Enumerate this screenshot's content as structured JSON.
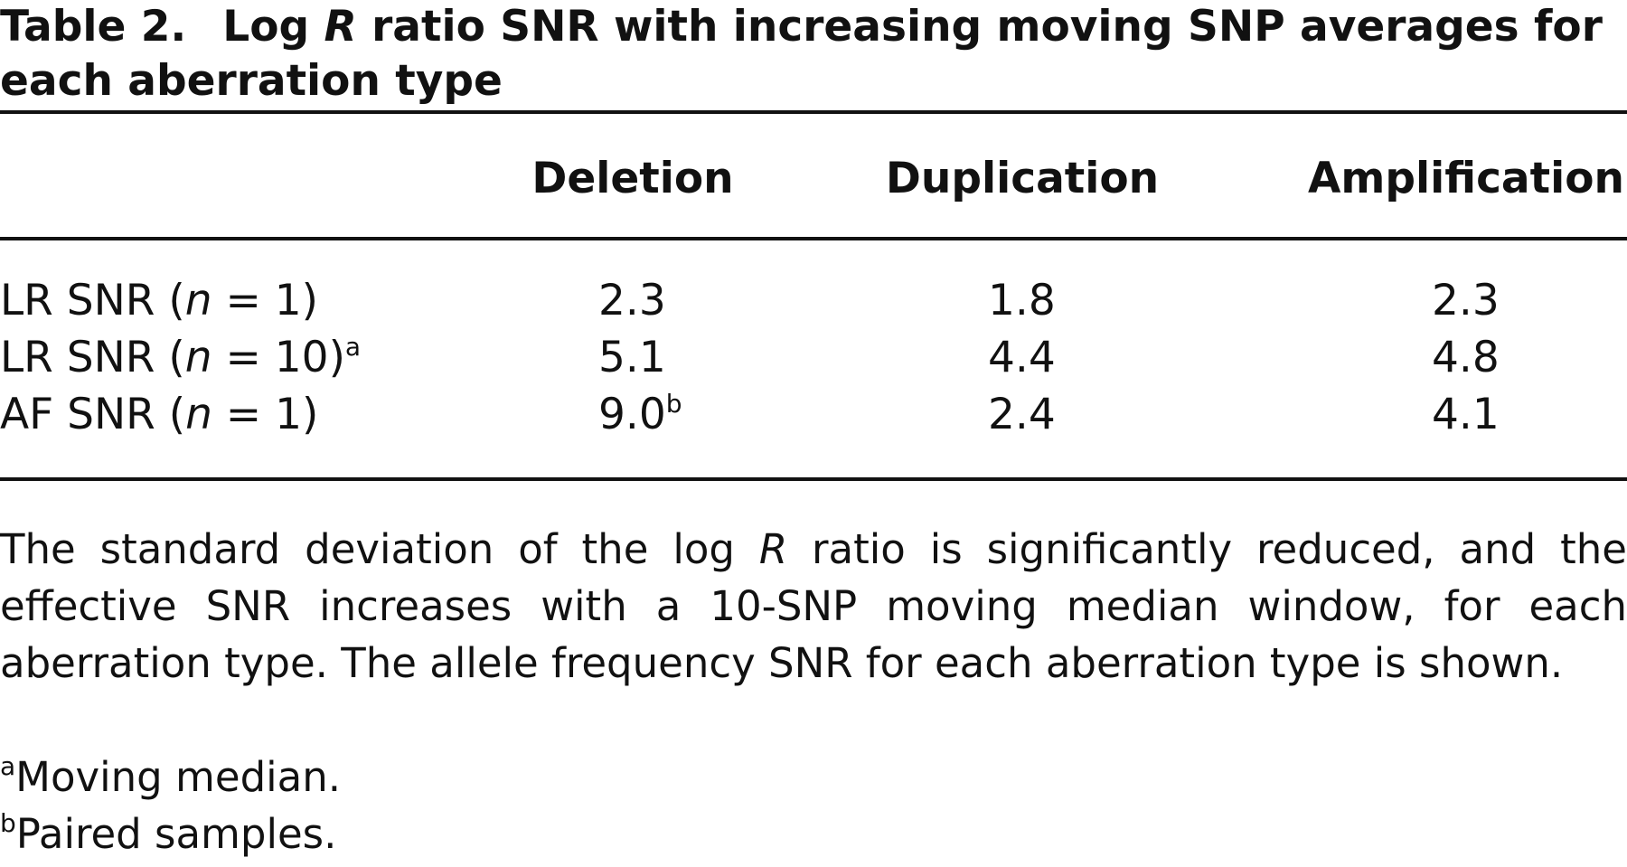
{
  "caption": {
    "label": "Table 2.",
    "parts": [
      "Log ",
      "R",
      " ratio SNR with increasing moving SNP averages for each aberration type"
    ]
  },
  "table": {
    "columns": [
      "Deletion",
      "Duplication",
      "Amplification"
    ],
    "rows": [
      {
        "label": [
          "LR SNR (",
          "n",
          " = 1)"
        ],
        "cells": [
          {
            "text": "2.3"
          },
          {
            "text": "1.8"
          },
          {
            "text": "2.3"
          }
        ]
      },
      {
        "label": [
          "LR SNR (",
          "n",
          " = 10)"
        ],
        "label_note": "a",
        "cells": [
          {
            "text": "5.1"
          },
          {
            "text": "4.4"
          },
          {
            "text": "4.8"
          }
        ]
      },
      {
        "label": [
          "AF SNR (",
          "n",
          " = 1)"
        ],
        "cells": [
          {
            "text": "9.0",
            "note": "b"
          },
          {
            "text": "2.4"
          },
          {
            "text": "4.1"
          }
        ]
      }
    ]
  },
  "footnote": {
    "parts": [
      "The standard deviation of the log ",
      "R",
      " ratio is significantly reduced, and the effective SNR increases with a 10-SNP moving median window, for each aberration type. The allele frequency SNR for each aberration type is shown."
    ],
    "notes": [
      {
        "mark": "a",
        "text": "Moving median."
      },
      {
        "mark": "b",
        "text": "Paired samples."
      }
    ]
  }
}
